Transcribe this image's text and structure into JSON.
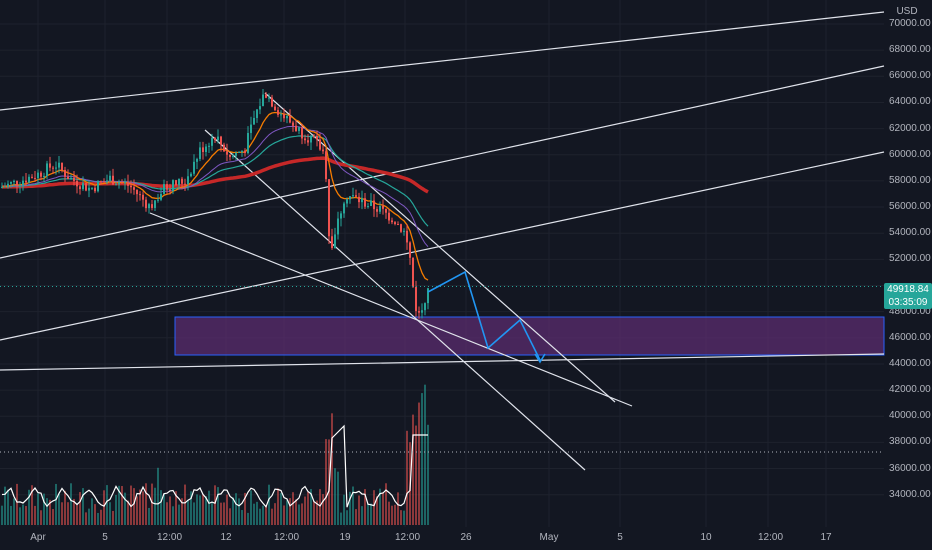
{
  "axis": {
    "currency": "USD",
    "price_labels": [
      "70000.00",
      "68000.00",
      "66000.00",
      "64000.00",
      "62000.00",
      "60000.00",
      "58000.00",
      "56000.00",
      "54000.00",
      "52000.00",
      "48000.00",
      "46000.00",
      "44000.00",
      "42000.00",
      "40000.00",
      "38000.00",
      "36000.00",
      "34000.00"
    ],
    "time_labels": [
      "Apr",
      "5",
      "12:00",
      "12",
      "12:00",
      "19",
      "12:00",
      "26",
      "May",
      "5",
      "10",
      "12:00",
      "17"
    ]
  },
  "last_price": {
    "value": "49918.84",
    "countdown": "03:35:09"
  },
  "colors": {
    "background": "#131722",
    "up": "#26a69a",
    "down": "#ef5350",
    "ema_slow": "#c62828",
    "ema_fast": "#f57c00",
    "ma_mid": "#26a69a",
    "trendline": "#e0e3eb",
    "zone_fill": "#5b2c6f",
    "zone_border": "#2962ff",
    "projection": "#2196f3"
  }
}
